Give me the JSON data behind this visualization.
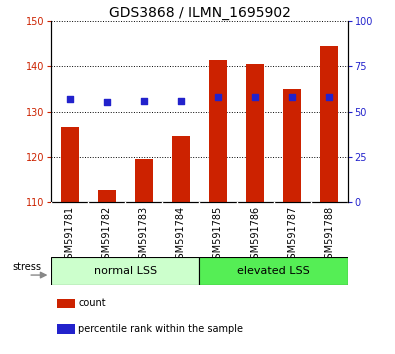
{
  "title": "GDS3868 / ILMN_1695902",
  "categories": [
    "GSM591781",
    "GSM591782",
    "GSM591783",
    "GSM591784",
    "GSM591785",
    "GSM591786",
    "GSM591787",
    "GSM591788"
  ],
  "bar_values": [
    126.5,
    112.5,
    119.5,
    124.5,
    141.5,
    140.5,
    135.0,
    144.5
  ],
  "percentile_values": [
    57,
    55,
    56,
    56,
    58,
    58,
    58,
    58
  ],
  "ylim_left": [
    110,
    150
  ],
  "ylim_right": [
    0,
    100
  ],
  "yticks_left": [
    110,
    120,
    130,
    140,
    150
  ],
  "yticks_right": [
    0,
    25,
    50,
    75,
    100
  ],
  "bar_color": "#cc2200",
  "dot_color": "#2222cc",
  "group1_label": "normal LSS",
  "group2_label": "elevated LSS",
  "group1_color": "#ccffcc",
  "group2_color": "#55ee55",
  "group1_n": 4,
  "group2_n": 4,
  "stress_label": "stress",
  "legend_count": "count",
  "legend_pct": "percentile rank within the sample",
  "bar_width": 0.5,
  "title_fontsize": 10,
  "tick_fontsize": 7,
  "label_fontsize": 8,
  "ticklabel_bg": "#d0d0d0"
}
